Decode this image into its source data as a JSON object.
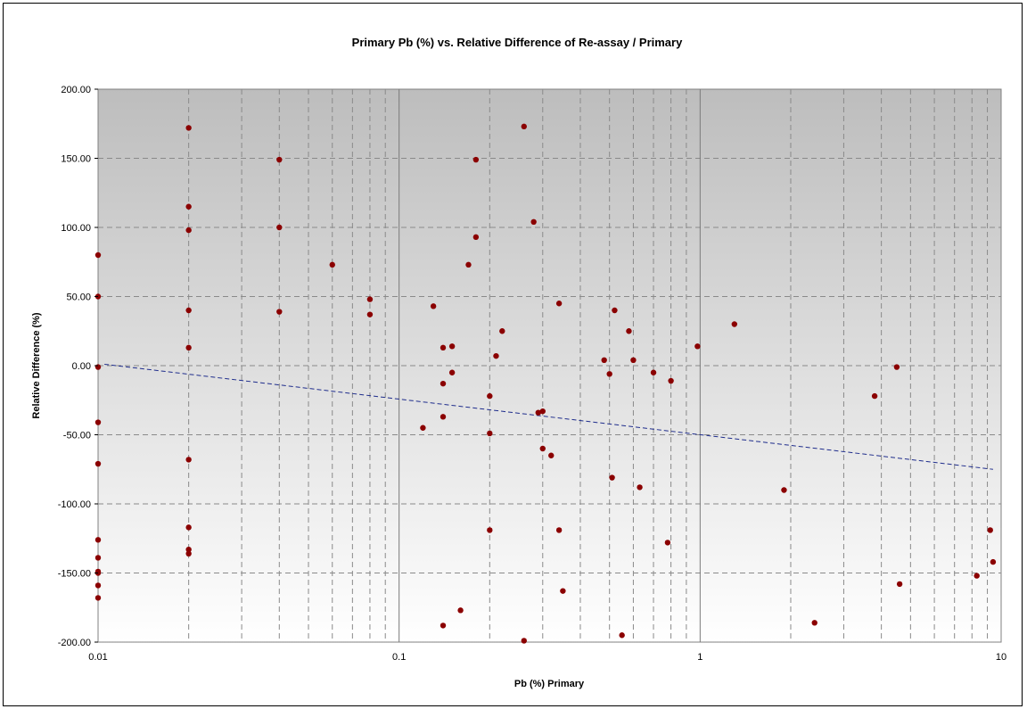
{
  "chart_data": {
    "type": "scatter",
    "title": "Primary Pb (%) vs. Relative Difference of Re-assay / Primary",
    "xlabel": "Pb (%) Primary",
    "ylabel": "Relative Difference (%)",
    "xscale": "log",
    "xlim": [
      0.01,
      10
    ],
    "ylim": [
      -200,
      200
    ],
    "x_tick_labels": [
      "0.01",
      "0.1",
      "1",
      "10"
    ],
    "x_ticks": [
      0.01,
      0.1,
      1,
      10
    ],
    "y_ticks": [
      200,
      150,
      100,
      50,
      0,
      -50,
      -100,
      -150,
      -200
    ],
    "y_tick_labels": [
      "200.00",
      "150.00",
      "100.00",
      "50.00",
      "0.00",
      "-50.00",
      "-100.00",
      "-150.00",
      "-200.00"
    ],
    "grid": true,
    "legend": "none",
    "series": [
      {
        "marker_color": "#8b0000",
        "points": [
          [
            0.01,
            80
          ],
          [
            0.01,
            50
          ],
          [
            0.01,
            -1
          ],
          [
            0.01,
            -41
          ],
          [
            0.01,
            -71
          ],
          [
            0.01,
            -126
          ],
          [
            0.01,
            -139
          ],
          [
            0.01,
            -149
          ],
          [
            0.01,
            -150
          ],
          [
            0.01,
            -159
          ],
          [
            0.01,
            -168
          ],
          [
            0.02,
            172
          ],
          [
            0.02,
            115
          ],
          [
            0.02,
            98
          ],
          [
            0.02,
            40
          ],
          [
            0.02,
            13
          ],
          [
            0.02,
            -68
          ],
          [
            0.02,
            -117
          ],
          [
            0.02,
            -133
          ],
          [
            0.02,
            -136
          ],
          [
            0.04,
            149
          ],
          [
            0.04,
            100
          ],
          [
            0.04,
            39
          ],
          [
            0.06,
            73
          ],
          [
            0.08,
            48
          ],
          [
            0.08,
            37
          ],
          [
            0.12,
            -45
          ],
          [
            0.13,
            43
          ],
          [
            0.14,
            13
          ],
          [
            0.14,
            -13
          ],
          [
            0.14,
            -37
          ],
          [
            0.14,
            -188
          ],
          [
            0.15,
            14
          ],
          [
            0.15,
            -5
          ],
          [
            0.16,
            -177
          ],
          [
            0.17,
            73
          ],
          [
            0.18,
            149
          ],
          [
            0.18,
            93
          ],
          [
            0.2,
            -22
          ],
          [
            0.2,
            -49
          ],
          [
            0.2,
            -119
          ],
          [
            0.21,
            7
          ],
          [
            0.22,
            25
          ],
          [
            0.26,
            173
          ],
          [
            0.26,
            -199
          ],
          [
            0.28,
            104
          ],
          [
            0.29,
            -34
          ],
          [
            0.3,
            -33
          ],
          [
            0.3,
            -60
          ],
          [
            0.32,
            -65
          ],
          [
            0.34,
            45
          ],
          [
            0.34,
            -119
          ],
          [
            0.35,
            -163
          ],
          [
            0.48,
            4
          ],
          [
            0.5,
            -6
          ],
          [
            0.51,
            -81
          ],
          [
            0.52,
            40
          ],
          [
            0.55,
            -195
          ],
          [
            0.58,
            25
          ],
          [
            0.6,
            4
          ],
          [
            0.63,
            -88
          ],
          [
            0.7,
            -5
          ],
          [
            0.78,
            -128
          ],
          [
            0.8,
            -11
          ],
          [
            0.98,
            14
          ],
          [
            1.3,
            30
          ],
          [
            1.9,
            -90
          ],
          [
            2.4,
            -186
          ],
          [
            3.8,
            -22
          ],
          [
            4.5,
            -1
          ],
          [
            4.6,
            -158
          ],
          [
            8.3,
            -152
          ],
          [
            9.2,
            -119
          ],
          [
            9.4,
            -142
          ]
        ]
      }
    ],
    "trendline": {
      "style": "dashed",
      "color": "#1f2d8c",
      "x": [
        0.0105,
        9.4
      ],
      "y": [
        1,
        -75
      ]
    }
  }
}
